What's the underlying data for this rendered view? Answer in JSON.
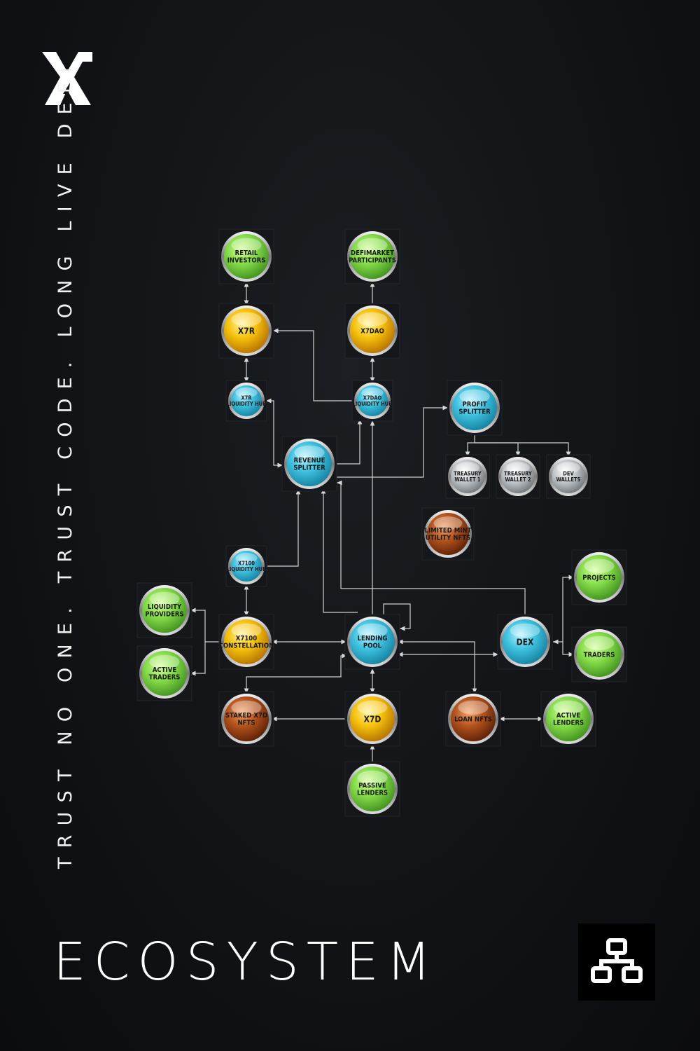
{
  "tagline": "TRUST NO ONE. TRUST CODE. LONG LIVE DEFI",
  "title": "ECOSYSTEM",
  "icons": {
    "logo": "x7-logo-icon",
    "badge": "network-nodes-icon"
  },
  "colors": {
    "background": "#111316",
    "green": "#7ed957",
    "gold": "#f2b705",
    "cyan": "#2bb6d4",
    "silver": "#b9bfc4",
    "copper": "#a0481c",
    "connector": "#d0d0d0"
  },
  "nodes": [
    {
      "id": "retail",
      "label": [
        "RETAIL",
        "INVESTORS"
      ],
      "kind": "green"
    },
    {
      "id": "defimarket",
      "label": [
        "DEFIMARKET",
        "PARTICIPANTS"
      ],
      "kind": "green"
    },
    {
      "id": "x7r",
      "label": [
        "X7R"
      ],
      "kind": "gold"
    },
    {
      "id": "x7dao",
      "label": [
        "X7DAO"
      ],
      "kind": "gold"
    },
    {
      "id": "x7r_hub",
      "label": [
        "X7R",
        "LIQUIDITY HUB"
      ],
      "kind": "cyan"
    },
    {
      "id": "x7dao_hub",
      "label": [
        "X7DAO",
        "LIQUIDITY HUB"
      ],
      "kind": "cyan"
    },
    {
      "id": "profit",
      "label": [
        "PROFIT",
        "SPLITTER"
      ],
      "kind": "cyan"
    },
    {
      "id": "revenue",
      "label": [
        "REVENUE",
        "SPLITTER"
      ],
      "kind": "cyan"
    },
    {
      "id": "treasury1",
      "label": [
        "TREASURY",
        "WALLET 1"
      ],
      "kind": "silver"
    },
    {
      "id": "treasury2",
      "label": [
        "TREASURY",
        "WALLET 2"
      ],
      "kind": "silver"
    },
    {
      "id": "dev",
      "label": [
        "DEV",
        "WALLETS"
      ],
      "kind": "silver"
    },
    {
      "id": "limited",
      "label": [
        "LIMITED MINT",
        "UTILITY NFTS"
      ],
      "kind": "copper"
    },
    {
      "id": "x7100_hub",
      "label": [
        "X7100",
        "LIQUIDITY HUB"
      ],
      "kind": "cyan"
    },
    {
      "id": "projects",
      "label": [
        "PROJECTS"
      ],
      "kind": "green"
    },
    {
      "id": "liq_providers",
      "label": [
        "LIQUIDITY",
        "PROVIDERS"
      ],
      "kind": "green"
    },
    {
      "id": "x7100",
      "label": [
        "X7100",
        "CONSTELLATION"
      ],
      "kind": "gold"
    },
    {
      "id": "lending",
      "label": [
        "LENDING",
        "POOL"
      ],
      "kind": "cyan"
    },
    {
      "id": "dex",
      "label": [
        "DEX"
      ],
      "kind": "cyan"
    },
    {
      "id": "traders",
      "label": [
        "TRADERS"
      ],
      "kind": "green"
    },
    {
      "id": "active_traders",
      "label": [
        "ACTIVE",
        "TRADERS"
      ],
      "kind": "green"
    },
    {
      "id": "staked",
      "label": [
        "STAKED X7D",
        "NFTS"
      ],
      "kind": "copper"
    },
    {
      "id": "x7d",
      "label": [
        "X7D"
      ],
      "kind": "gold"
    },
    {
      "id": "loan",
      "label": [
        "LOAN NFTS"
      ],
      "kind": "copper"
    },
    {
      "id": "active_lenders",
      "label": [
        "ACTIVE",
        "LENDERS"
      ],
      "kind": "green"
    },
    {
      "id": "passive",
      "label": [
        "PASSIVE",
        "LENDERS"
      ],
      "kind": "green"
    }
  ]
}
